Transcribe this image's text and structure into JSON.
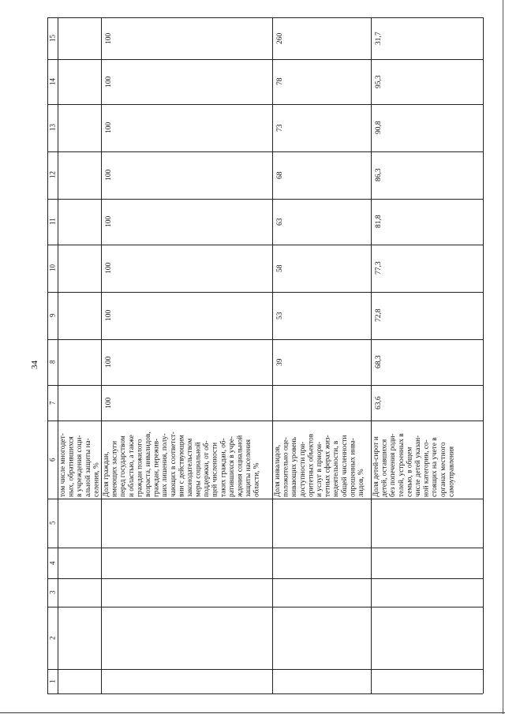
{
  "page_number": "34",
  "table": {
    "column_headers": [
      "1",
      "2",
      "3",
      "4",
      "5",
      "6",
      "7",
      "8",
      "9",
      "10",
      "11",
      "12",
      "13",
      "14",
      "15"
    ],
    "rows": [
      {
        "indicator": "том числе многодет-\nных, обратившихся\nв учреждения соци-\nальной защиты на-\nселения, %",
        "values": {
          "7": "",
          "8": "",
          "9": "",
          "10": "",
          "11": "",
          "12": "",
          "13": "",
          "14": "",
          "15": ""
        }
      },
      {
        "indicator": "Доля граждан,\nимеющих заслуги\nперед государством\nи областью, а также\nграждан пожилого\nвозраста, инвалидов,\nграждан, пережив-\nших лишения, полу-\nчающих в соответст-\nвии с действующим\nзаконодательством\nмеры социальной\nподдержки, от об-\nщей численности\nтаких граждан, об-\nратившихся в учре-\nждения социальной\nзащиты населения\nобласти, %",
        "values": {
          "7": "100",
          "8": "100",
          "9": "100",
          "10": "100",
          "11": "100",
          "12": "100",
          "13": "100",
          "14": "100",
          "15": "100"
        }
      },
      {
        "indicator": "Доля инвалидов,\nположительно оце-\nнивающих уровень\nдоступности при-\nоритетных объектов\nи услуг в приори-\nтетных сферах жиз-\nнедеятельности, в\nобщей численности\nопрошенных инва-\nлидов, %",
        "values": {
          "7": "",
          "8": "39",
          "9": "53",
          "10": "58",
          "11": "63",
          "12": "68",
          "13": "73",
          "14": "78",
          "15": "260"
        }
      },
      {
        "indicator": "Доля детей-сирот и\nдетей, оставшихся\nбез попечения роди-\nтелей, устроенных в\nсемью, в общем\nчисле детей указан-\nной категории, со-\nстоящих на учете в\nорганах местного\nсамоуправления",
        "values": {
          "7": "63,6",
          "8": "68,3",
          "9": "72,8",
          "10": "77,3",
          "11": "81,8",
          "12": "86,3",
          "13": "90,8",
          "14": "95,3",
          "15": "31,7"
        }
      }
    ]
  }
}
